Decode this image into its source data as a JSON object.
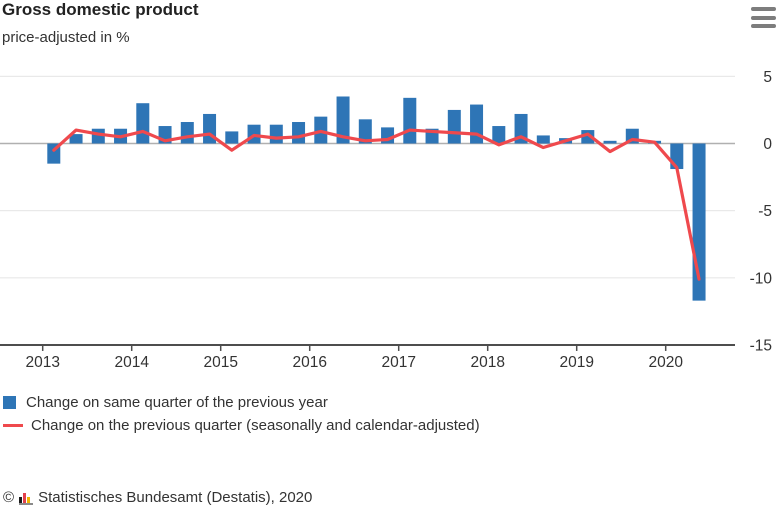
{
  "chart_data": {
    "type": "bar+line",
    "title": "Gross domestic product",
    "subtitle": "price-adjusted in %",
    "unit": "%",
    "grid": "horizontal",
    "legend_position": "bottom-left",
    "ylim": [
      -15,
      5
    ],
    "y_ticks": [
      5,
      0,
      -5,
      -10,
      -15
    ],
    "x_tick_labels": [
      "2013",
      "2014",
      "2015",
      "2016",
      "2017",
      "2018",
      "2019",
      "2020"
    ],
    "categories": [
      "2013 Q1",
      "2013 Q2",
      "2013 Q3",
      "2013 Q4",
      "2014 Q1",
      "2014 Q2",
      "2014 Q3",
      "2014 Q4",
      "2015 Q1",
      "2015 Q2",
      "2015 Q3",
      "2015 Q4",
      "2016 Q1",
      "2016 Q2",
      "2016 Q3",
      "2016 Q4",
      "2017 Q1",
      "2017 Q2",
      "2017 Q3",
      "2017 Q4",
      "2018 Q1",
      "2018 Q2",
      "2018 Q3",
      "2018 Q4",
      "2019 Q1",
      "2019 Q2",
      "2019 Q3",
      "2019 Q4",
      "2020 Q1",
      "2020 Q2"
    ],
    "series": [
      {
        "name": "Change on same quarter of the previous year",
        "type": "bar",
        "color": "#2e75b6",
        "values": [
          -1.5,
          0.7,
          1.1,
          1.1,
          3.0,
          1.3,
          1.6,
          2.2,
          0.9,
          1.4,
          1.4,
          1.6,
          2.0,
          3.5,
          1.8,
          1.2,
          3.4,
          1.1,
          2.5,
          2.9,
          1.3,
          2.2,
          0.6,
          0.4,
          1.0,
          0.2,
          1.1,
          0.2,
          -1.9,
          -11.7
        ]
      },
      {
        "name": "Change on the previous quarter (seasonally and calendar-adjusted)",
        "type": "line",
        "color": "#ef494d",
        "values": [
          -0.5,
          1.0,
          0.7,
          0.5,
          0.9,
          0.2,
          0.5,
          0.7,
          -0.5,
          0.6,
          0.4,
          0.5,
          0.9,
          0.5,
          0.2,
          0.3,
          1.0,
          0.9,
          0.8,
          0.7,
          -0.1,
          0.5,
          -0.3,
          0.2,
          0.7,
          -0.6,
          0.3,
          0.1,
          -1.8,
          -10.1
        ]
      }
    ]
  },
  "colors": {
    "bar": "#2e75b6",
    "line": "#ef494d",
    "grid_line": "#e9e9e9",
    "zero_line": "#b0b0b0",
    "axis": "#4d4d4d",
    "text": "#333333",
    "title_text": "#222222",
    "menu_icon": "#7d7d7d"
  },
  "footer": {
    "copyright_symbol": "©",
    "text": "Statistisches Bundesamt (Destatis), 2020"
  }
}
